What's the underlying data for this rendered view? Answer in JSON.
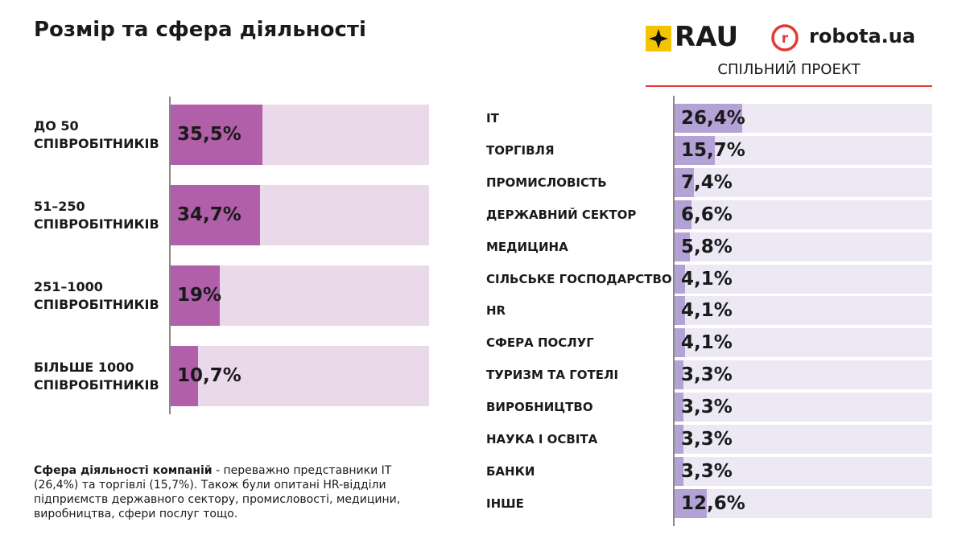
{
  "header": {
    "title": "Розмір та сфера діяльності",
    "logo_left": "RAU",
    "logo_right": "robota.ua",
    "subtitle": "СПІЛЬНИЙ ПРОЕКТ"
  },
  "note": {
    "bold": "Сфера діяльності компаній",
    "text": " - переважно представники IT (26,4%) та торгівлі (15,7%). Також були опитані HR-відділи підприємств державного сектору, промисловості, медицини, виробництва, сфери послуг тощо."
  },
  "chart_data": [
    {
      "type": "bar",
      "categories": [
        "ДО 50\nСПІВРОБІТНИКІВ",
        "51–250\nСПІВРОБІТНИКІВ",
        "251–1000\nСПІВРОБІТНИКІВ",
        "БІЛЬШЕ 1000\nСПІВРОБІТНИКІВ"
      ],
      "values": [
        35.5,
        34.7,
        19,
        10.7
      ],
      "value_labels": [
        "35,5%",
        "34,7%",
        "19%",
        "10,7%"
      ],
      "color": "#b05fa8",
      "track_color": "#ead9ea",
      "xlim": [
        0,
        100
      ]
    },
    {
      "type": "bar",
      "categories": [
        "IT",
        "ТОРГІВЛЯ",
        "ПРОМИСЛОВІСТЬ",
        "ДЕРЖАВНИЙ СЕКТОР",
        "МЕДИЦИНА",
        "СІЛЬСЬКЕ ГОСПОДАРСТВО",
        "HR",
        "СФЕРА ПОСЛУГ",
        "ТУРИЗМ ТА ГОТЕЛІ",
        "ВИРОБНИЦТВО",
        "НАУКА І ОСВІТА",
        "БАНКИ",
        "ІНШЕ"
      ],
      "values": [
        26.4,
        15.7,
        7.4,
        6.6,
        5.8,
        4.1,
        4.1,
        4.1,
        3.3,
        3.3,
        3.3,
        3.3,
        12.6
      ],
      "value_labels": [
        "26,4%",
        "15,7%",
        "7,4%",
        "6,6%",
        "5,8%",
        "4,1%",
        "4,1%",
        "4,1%",
        "3,3%",
        "3,3%",
        "3,3%",
        "3,3%",
        "12,6%"
      ],
      "color": "#b3a2d6",
      "track_color": "#ece8f4",
      "xlim": [
        0,
        100
      ]
    }
  ]
}
